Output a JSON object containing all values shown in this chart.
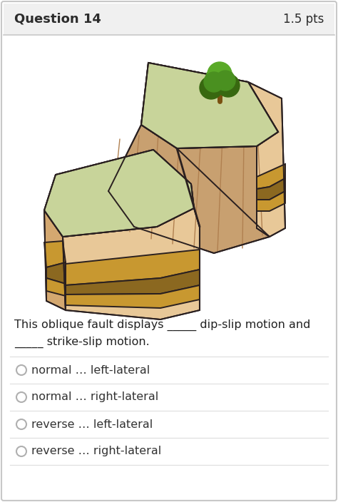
{
  "title_left": "Question 14",
  "title_right": "1.5 pts",
  "question_text_line1": "This oblique fault displays _____ dip-slip motion and",
  "question_text_line2": "_____ strike-slip motion.",
  "options": [
    "normal … left-lateral",
    "normal … right-lateral",
    "reverse … left-lateral",
    "reverse … right-lateral"
  ],
  "bg_color": "#ffffff",
  "header_bg": "#f0f0f0",
  "border_color": "#c8c8c8",
  "text_color": "#2c2c2c",
  "divider_color": "#e0e0e0",
  "grass_color": "#c8d49a",
  "tan_light": "#e8c898",
  "tan_mid": "#d4a870",
  "tan_dark": "#c49060",
  "hatch_color": "#c8a070",
  "layer_gold": "#c89830",
  "layer_dark": "#8b6820",
  "outline": "#2a2020",
  "tree_trunk": "#7a5010",
  "tree_g1": "#4a9020",
  "tree_g2": "#386810",
  "tree_g3": "#5aaa28"
}
